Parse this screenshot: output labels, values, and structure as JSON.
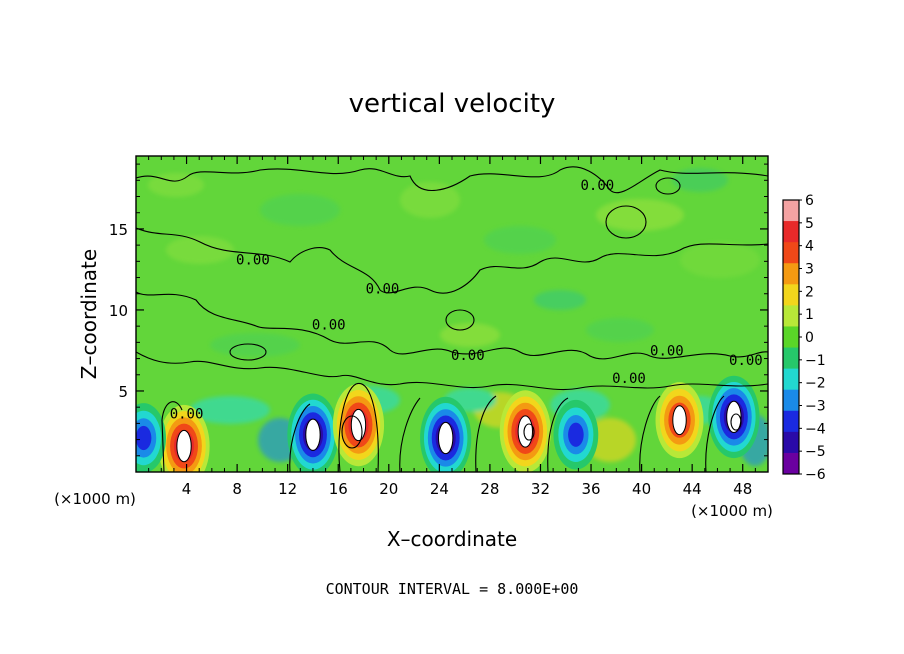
{
  "chart_data": {
    "type": "heatmap",
    "title": "vertical velocity",
    "xlabel": "X–coordinate",
    "ylabel": "Z–coordinate",
    "xlim": [
      0,
      50
    ],
    "ylim": [
      0,
      19.5
    ],
    "x_ticks": [
      4,
      8,
      12,
      16,
      20,
      24,
      28,
      32,
      36,
      40,
      44,
      48
    ],
    "x_tick_labels": [
      "4",
      "8",
      "12",
      "16",
      "20",
      "24",
      "28",
      "32",
      "36",
      "40",
      "44",
      "48"
    ],
    "y_ticks": [
      5,
      10,
      15
    ],
    "y_tick_labels": [
      "5",
      "10",
      "15"
    ],
    "x_unit_left": "(×1000 m)",
    "x_unit_right": "(×1000 m)",
    "contour_interval_text": "CONTOUR INTERVAL = 8.000E+00",
    "contour_labels": [
      "0.00",
      "0.00",
      "0.00",
      "0.00",
      "0.00",
      "0.00",
      "0.00",
      "0.00",
      "0.00"
    ],
    "colorbar": {
      "values": [
        6,
        5,
        4,
        3,
        2,
        1,
        0,
        -1,
        -2,
        -3,
        -4,
        -5,
        -6
      ],
      "labels": [
        "6",
        "5",
        "4",
        "3",
        "2",
        "1",
        "0",
        "−1",
        "−2",
        "−3",
        "−4",
        "−5",
        "−6"
      ],
      "colors": [
        "#f4a2a2",
        "#e82a2a",
        "#f04818",
        "#f49a12",
        "#f2d61c",
        "#b8e838",
        "#5ad628",
        "#26c86a",
        "#22d8d0",
        "#1a8ae8",
        "#1a2ae0",
        "#2a0aa8",
        "#6a00a0"
      ]
    },
    "background_color": "#62d63a",
    "features": [
      {
        "kind": "updraft",
        "x": 3.8,
        "z": 1.6,
        "w": 6
      },
      {
        "kind": "downdraft",
        "x": 0.6,
        "z": 2.1,
        "w": -4
      },
      {
        "kind": "downdraft",
        "x": 14.0,
        "z": 2.3,
        "w": -6
      },
      {
        "kind": "updraft",
        "x": 17.6,
        "z": 2.9,
        "w": 6
      },
      {
        "kind": "downdraft",
        "x": 24.5,
        "z": 2.1,
        "w": -6
      },
      {
        "kind": "updraft",
        "x": 30.8,
        "z": 2.5,
        "w": 6
      },
      {
        "kind": "downdraft",
        "x": 34.8,
        "z": 2.3,
        "w": -4
      },
      {
        "kind": "updraft",
        "x": 43.0,
        "z": 3.2,
        "w": 5
      },
      {
        "kind": "downdraft",
        "x": 47.3,
        "z": 3.4,
        "w": -6
      }
    ]
  }
}
